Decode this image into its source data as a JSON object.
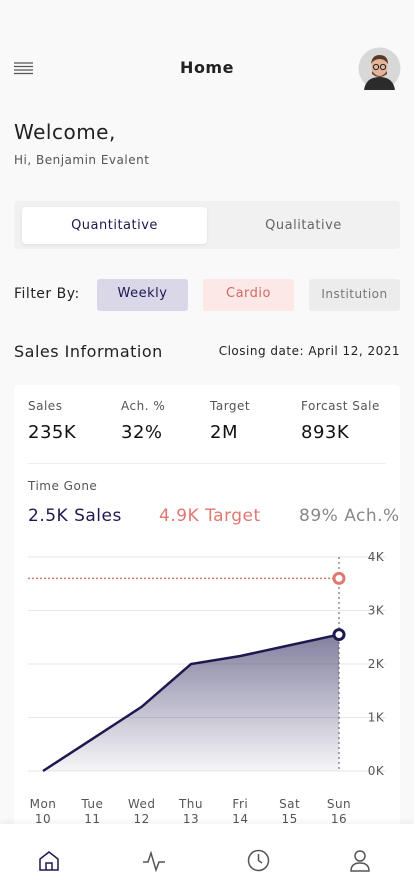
{
  "header": {
    "title": "Home"
  },
  "welcome": {
    "title": "Welcome,",
    "subtitle": "Hi, Benjamin Evalent"
  },
  "tabs": [
    "Quantitative",
    "Qualitative"
  ],
  "filter": {
    "label": "Filter By:",
    "options": [
      "Weekly",
      "Cardio",
      "Institution"
    ]
  },
  "sales": {
    "title": "Sales Information",
    "closing": "Closing date: April 12, 2021",
    "stats": [
      {
        "label": "Sales",
        "value": "235K"
      },
      {
        "label": "Ach. %",
        "value": "32%"
      },
      {
        "label": "Target",
        "value": "2M"
      },
      {
        "label": "Forcast Sale",
        "value": "893K"
      }
    ],
    "time_gone": "Time Gone",
    "summary": [
      "2.5K Sales",
      "4.9K Target",
      "89% Ach.%"
    ]
  },
  "chart_data": {
    "type": "line",
    "categories": [
      "Mon",
      "Tue",
      "Wed",
      "Thu",
      "Fri",
      "Sat",
      "Sun"
    ],
    "dates": [
      "10",
      "11",
      "12",
      "13",
      "14",
      "15",
      "16"
    ],
    "values": [
      0,
      600,
      1200,
      2000,
      2150,
      2350,
      2550
    ],
    "color": "#1e1850",
    "target": 3600,
    "target_color": "#e07870",
    "ylim": [
      0,
      4000
    ],
    "yticks": [
      {
        "value": 0,
        "label": "0K"
      },
      {
        "value": 1000,
        "label": "1K"
      },
      {
        "value": 2000,
        "label": "2K"
      },
      {
        "value": 3000,
        "label": "3K"
      },
      {
        "value": 4000,
        "label": "4K"
      }
    ],
    "grid": true
  }
}
